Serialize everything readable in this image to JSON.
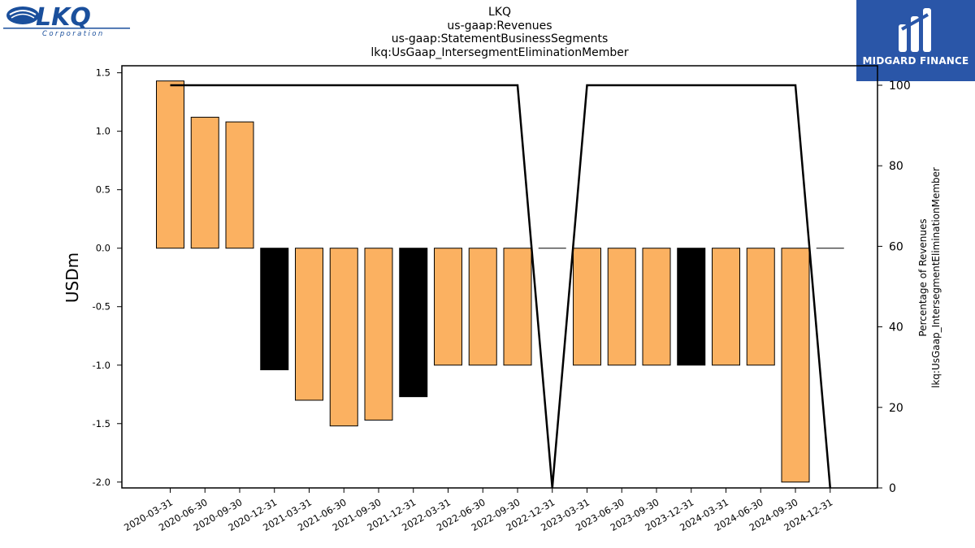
{
  "logos": {
    "left_brand": "LKQ",
    "left_sub": "Corporation",
    "right_brand": "MIDGARD FINANCE"
  },
  "chart_data": {
    "type": "bar",
    "title_lines": [
      "LKQ",
      "us-gaap:Revenues",
      "us-gaap:StatementBusinessSegments",
      "lkq:UsGaap_IntersegmentEliminationMember"
    ],
    "ylabel": "USDm",
    "y2label_lines": [
      "Percentage of Revenues",
      "lkq:UsGaap_IntersegmentEliminationMember"
    ],
    "ylim": [
      -2.05,
      1.56
    ],
    "y2lim": [
      0,
      100
    ],
    "yticks": [
      "1.5",
      "1.0",
      "0.5",
      "0.0",
      "-0.5",
      "-1.0",
      "-1.5",
      "-2.0"
    ],
    "y2ticks": [
      "100",
      "80",
      "60",
      "40",
      "20",
      "0"
    ],
    "categories": [
      "2020-03-31",
      "2020-06-30",
      "2020-09-30",
      "2020-12-31",
      "2021-03-31",
      "2021-06-30",
      "2021-09-30",
      "2021-12-31",
      "2022-03-31",
      "2022-06-30",
      "2022-09-30",
      "2022-12-31",
      "2023-03-31",
      "2023-06-30",
      "2023-09-30",
      "2023-12-31",
      "2024-03-31",
      "2024-06-30",
      "2024-09-30",
      "2024-12-31"
    ],
    "series": [
      {
        "values": [
          1.43,
          1.12,
          1.08,
          -1.04,
          -1.3,
          -1.52,
          -1.47,
          -1.27,
          -1.0,
          -1.0,
          -1.0,
          0,
          -1.0,
          -1.0,
          -1.0,
          -1.0,
          -1.0,
          -1.0,
          -2.0,
          0
        ],
        "colors": [
          "#fbb161",
          "#fbb161",
          "#fbb161",
          "#000000",
          "#fbb161",
          "#fbb161",
          "#fbb161",
          "#000000",
          "#fbb161",
          "#fbb161",
          "#fbb161",
          "#fbb161",
          "#fbb161",
          "#fbb161",
          "#fbb161",
          "#000000",
          "#fbb161",
          "#fbb161",
          "#fbb161",
          "#fbb161"
        ]
      },
      {
        "type": "line",
        "axis": "right",
        "values": [
          100,
          100,
          100,
          100,
          100,
          100,
          100,
          100,
          100,
          100,
          100,
          0,
          100,
          100,
          100,
          100,
          100,
          100,
          100,
          0
        ]
      }
    ],
    "colors": {
      "orange_bar": "#fbb161",
      "black_bar": "#000000",
      "line": "#000000"
    },
    "grid": false,
    "legend": "none"
  }
}
